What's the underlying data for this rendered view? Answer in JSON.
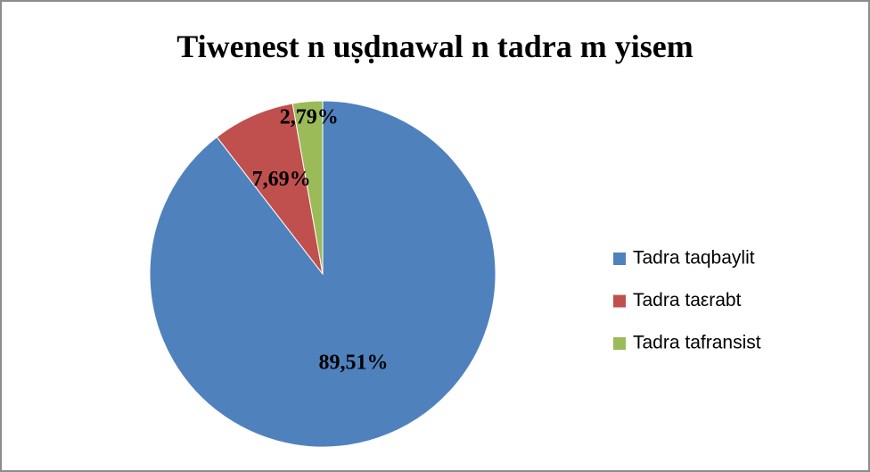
{
  "chart_data": {
    "type": "pie",
    "title": "Tiwenest n uṣḍnawal n tadra m yisem",
    "categories": [
      "Tadra taqbaylit",
      "Tadra taεrabt",
      "Tadra tafransist"
    ],
    "values": [
      89.51,
      7.69,
      2.79
    ],
    "value_labels": [
      "89,51%",
      "7,69%",
      "2,79%"
    ],
    "colors": [
      "#4f81bd",
      "#c0504d",
      "#9bbb59"
    ],
    "legend": "right"
  }
}
